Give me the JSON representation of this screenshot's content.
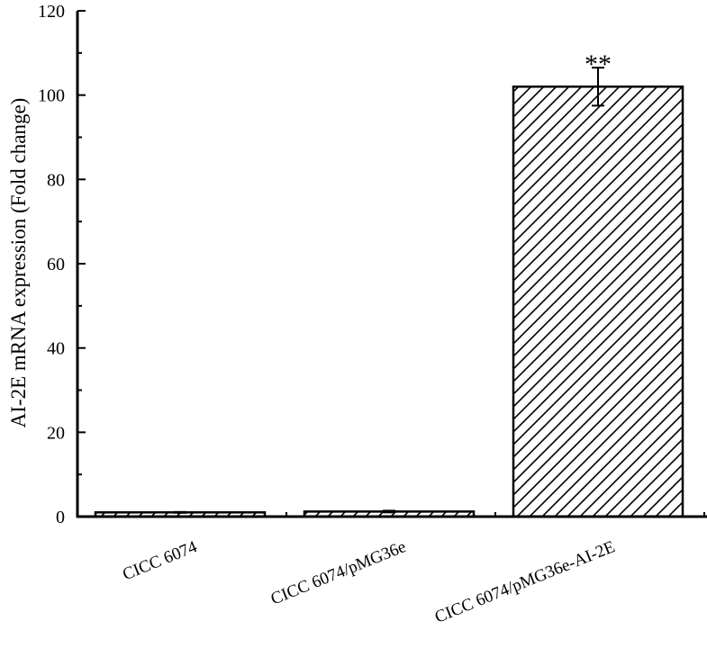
{
  "chart_data": {
    "type": "bar",
    "title": "",
    "xlabel": "",
    "ylabel": "AI-2E mRNA expression (Fold change)",
    "ylim": [
      0,
      120
    ],
    "yticks": [
      0,
      20,
      40,
      60,
      80,
      100,
      120
    ],
    "categories": [
      "CICC 6074",
      "CICC 6074/pMG36e",
      "CICC 6074/pMG36e-AI-2E"
    ],
    "values": [
      1.0,
      1.2,
      102.0
    ],
    "error": [
      0.1,
      0.2,
      4.5
    ],
    "annotations": [
      "",
      "",
      "**"
    ],
    "bar_fill": "hatched",
    "colors": {
      "bar_stroke": "#000000",
      "hatch": "#000000",
      "background": "#ffffff"
    },
    "grid": false,
    "legend": "none"
  }
}
